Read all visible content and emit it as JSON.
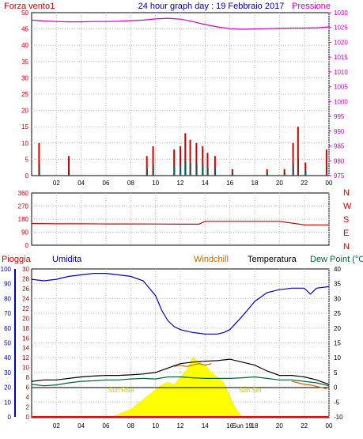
{
  "header": {
    "left_label": "Forza vento1",
    "title": "24 hour graph day : 19 Febbraio 2017",
    "right_label": "Pressione"
  },
  "colors": {
    "wind": "#d00000",
    "gust_dark": "#006060",
    "wind_blue": "#0000d0",
    "pressure": "#cc00cc",
    "direction": "#cc0000",
    "humidity": "#0000cc",
    "temperature": "#000000",
    "dewpoint": "#006633",
    "windchill": "#cc6600",
    "rain": "#ff0000",
    "solar": "#ffff00",
    "axis_left": "#cc0000",
    "axis_blue": "#0000aa",
    "sun_label": "#cccc00"
  },
  "chart_data": [
    {
      "type": "line",
      "title": "24 hour graph day : 19 Febbraio 2017",
      "panel": "wind_pressure",
      "x_ticks": [
        "02",
        "04",
        "06",
        "08",
        "10",
        "12",
        "14",
        "16",
        "18",
        "20",
        "22",
        "00"
      ],
      "y_left_label": "Forza vento1",
      "y_left_ticks": [
        0,
        5,
        10,
        15,
        20,
        25,
        30,
        35,
        40,
        45,
        50
      ],
      "y_left_lim": [
        0,
        50
      ],
      "y_right_label": "Pressione",
      "y_right_ticks": [
        975,
        980,
        985,
        990,
        995,
        1000,
        1005,
        1010,
        1015,
        1020,
        1025,
        1030
      ],
      "y_right_lim": [
        975,
        1030
      ],
      "series": [
        {
          "name": "Pressione",
          "x": [
            0,
            1,
            2,
            3,
            4,
            5,
            6,
            7,
            8,
            9,
            10,
            11,
            12,
            13,
            14,
            15,
            16,
            17,
            18,
            19,
            20,
            21,
            22,
            23,
            24
          ],
          "y": [
            1027.5,
            1027.2,
            1027.0,
            1026.9,
            1026.9,
            1027.0,
            1027.0,
            1027.1,
            1027.3,
            1027.5,
            1027.9,
            1028.1,
            1027.8,
            1027.0,
            1026.0,
            1025.2,
            1024.6,
            1024.4,
            1024.5,
            1024.6,
            1024.7,
            1024.8,
            1024.8,
            1024.9,
            1025.2
          ]
        }
      ],
      "wind_gusts": [
        {
          "x": 0.6,
          "y": 10
        },
        {
          "x": 3.0,
          "y": 6
        },
        {
          "x": 9.3,
          "y": 6
        },
        {
          "x": 9.8,
          "y": 9
        },
        {
          "x": 11.5,
          "y": 8
        },
        {
          "x": 12.0,
          "y": 9
        },
        {
          "x": 12.4,
          "y": 13
        },
        {
          "x": 12.8,
          "y": 11
        },
        {
          "x": 13.3,
          "y": 10
        },
        {
          "x": 13.8,
          "y": 9
        },
        {
          "x": 14.2,
          "y": 7
        },
        {
          "x": 14.8,
          "y": 6
        },
        {
          "x": 16.2,
          "y": 2
        },
        {
          "x": 19.0,
          "y": 2
        },
        {
          "x": 20.4,
          "y": 2
        },
        {
          "x": 21.1,
          "y": 10
        },
        {
          "x": 21.5,
          "y": 15
        },
        {
          "x": 22.1,
          "y": 4
        },
        {
          "x": 23.8,
          "y": 8
        }
      ]
    },
    {
      "type": "line",
      "panel": "wind_direction",
      "y_right_labels": [
        "N",
        "W",
        "S",
        "E",
        "N"
      ],
      "y_left_ticks": [
        0,
        90,
        180,
        270,
        360
      ],
      "y_left_lim": [
        0,
        360
      ],
      "series": [
        {
          "name": "direction",
          "x": [
            0,
            2,
            4,
            6,
            8,
            10,
            12,
            13.5,
            14,
            16,
            18,
            20,
            22,
            24
          ],
          "y": [
            150,
            148,
            148,
            147,
            147,
            146,
            145,
            145,
            165,
            165,
            165,
            165,
            140,
            140
          ]
        }
      ]
    },
    {
      "type": "line",
      "panel": "temp_humidity",
      "labels": {
        "pioggia": "Pioggia",
        "umidita": "Umidita",
        "windchill": "Windchill",
        "temperatura": "Temperatura",
        "dewpoint": "Dew Point (°C"
      },
      "sunrise_label": "Sun Rise",
      "sunset_label": "Sun Set",
      "y_hum_ticks": [
        0,
        10,
        20,
        30,
        40,
        50,
        60,
        70,
        80,
        90,
        100
      ],
      "y_hum_lim": [
        0,
        100
      ],
      "y_left_ticks": [
        0,
        2,
        4,
        6,
        8,
        10,
        12,
        14,
        16,
        18,
        20,
        22,
        24,
        26,
        28,
        30
      ],
      "y_temp_ticks": [
        -10,
        -5,
        0,
        5,
        10,
        15,
        20,
        25,
        30,
        35,
        40
      ],
      "y_temp_lim": [
        -10,
        40
      ],
      "bottom_ticks": [
        "02",
        "04",
        "06",
        "08",
        "10",
        "12",
        "14",
        "16",
        "Sun 19",
        "18",
        "20",
        "22",
        "00"
      ],
      "series": [
        {
          "name": "Umidita",
          "x": [
            0,
            1,
            2,
            3,
            4,
            5,
            6,
            7,
            8,
            9,
            10,
            10.5,
            11,
            11.5,
            12,
            13,
            14,
            15,
            15.5,
            16,
            17,
            17.5,
            18,
            19,
            20,
            21,
            22,
            22.5,
            23,
            24
          ],
          "y": [
            93,
            92,
            93,
            95,
            96,
            97,
            97,
            96,
            95,
            92,
            82,
            72,
            65,
            61,
            59,
            57,
            56,
            56,
            57,
            59,
            68,
            73,
            78,
            84,
            86,
            87,
            87,
            83,
            87,
            88
          ]
        },
        {
          "name": "Temperatura",
          "x": [
            0,
            1,
            2,
            3,
            4,
            5,
            6,
            7,
            8,
            9,
            10,
            11,
            12,
            13,
            14,
            15,
            16,
            17,
            18,
            19,
            20,
            21,
            22,
            23,
            24
          ],
          "y": [
            2.0,
            2.5,
            2.5,
            3.0,
            3.5,
            3.8,
            4.0,
            4.0,
            4.2,
            4.5,
            5.0,
            6.5,
            8.0,
            8.5,
            8.8,
            9.0,
            9.5,
            8.5,
            7.5,
            5.5,
            4.0,
            4.0,
            3.5,
            2.5,
            1.0
          ]
        },
        {
          "name": "Dew Point",
          "x": [
            0,
            1,
            2,
            3,
            4,
            5,
            6,
            7,
            8,
            9,
            10,
            11,
            12,
            13,
            14,
            15,
            16,
            17,
            18,
            19,
            20,
            21,
            22,
            23,
            24
          ],
          "y": [
            1.0,
            0.5,
            0.8,
            1.5,
            2.0,
            2.2,
            2.5,
            2.5,
            2.8,
            3.0,
            2.8,
            3.5,
            3.5,
            3.2,
            3.0,
            3.0,
            3.0,
            3.2,
            3.5,
            3.0,
            2.5,
            2.5,
            2.0,
            1.5,
            0.5
          ]
        },
        {
          "name": "Windchill",
          "x": [
            11.5,
            12,
            12.5,
            13,
            13.5,
            14,
            14.5,
            21,
            21.5,
            22,
            22.5,
            23.8
          ],
          "y": [
            7.0,
            7.5,
            7.0,
            7.5,
            8.0,
            7.5,
            8.0,
            2.0,
            1.5,
            1.0,
            0.8,
            -0.5
          ]
        },
        {
          "name": "Solar",
          "x": [
            6.5,
            7,
            8,
            9,
            10,
            10.5,
            11,
            11.5,
            12,
            12.5,
            13,
            13.5,
            14,
            14.5,
            15,
            15.5,
            16,
            16.5,
            17
          ],
          "y": [
            0,
            0.5,
            1.5,
            3.5,
            5.5,
            6.5,
            7.0,
            6.5,
            8.0,
            9.5,
            12.0,
            11.0,
            10.5,
            9.0,
            8.0,
            7.0,
            4.0,
            1.5,
            0
          ]
        }
      ]
    }
  ]
}
